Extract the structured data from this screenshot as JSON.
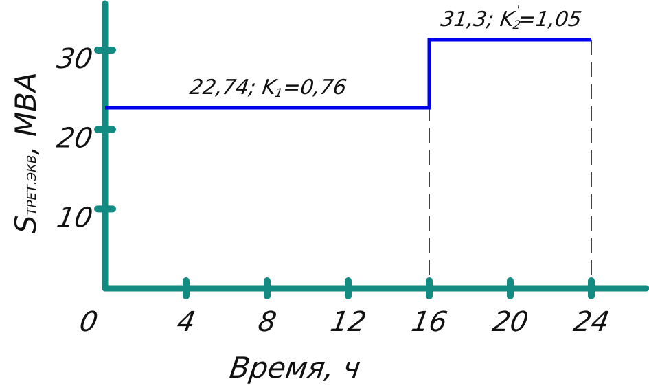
{
  "chart_data": {
    "type": "line",
    "step": true,
    "xlabel": "Время,  ч",
    "ylabel_main": "S",
    "ylabel_sub": "ТРЕТ.ЭКВ",
    "ylabel_unit": ", МВА",
    "x_ticks": [
      0,
      4,
      8,
      12,
      16,
      20,
      24
    ],
    "y_ticks": [
      10,
      20,
      30
    ],
    "xlim": [
      0,
      26.8
    ],
    "ylim": [
      0,
      36
    ],
    "series": [
      {
        "x": [
          0,
          16,
          16,
          24
        ],
        "y": [
          22.74,
          22.74,
          31.3,
          31.3
        ]
      }
    ],
    "guides_x": [
      16,
      24
    ],
    "annotations": [
      {
        "value": "22,74;",
        "k": "K",
        "k_sub": "1",
        "k_sup": "",
        "k_val": "=0,76",
        "x": 8,
        "y": 22.74
      },
      {
        "value": "31,3;",
        "k": "K",
        "k_sub": "2",
        "k_sup": "'",
        "k_val": "=1,05",
        "x": 20,
        "y": 31.3
      }
    ],
    "colors": {
      "axes": "#138a82",
      "series": "#0000ee",
      "guides": "#111111"
    }
  }
}
